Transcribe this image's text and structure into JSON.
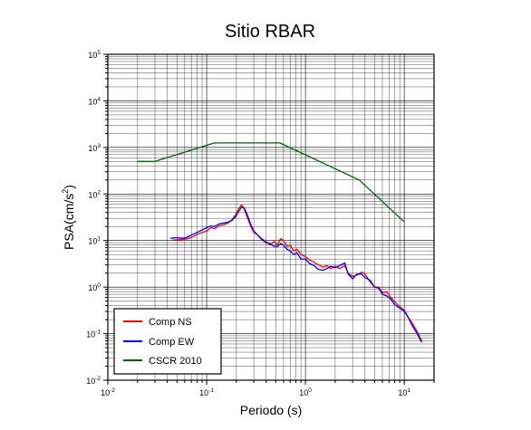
{
  "chart_data": {
    "type": "line",
    "title": "Sitio RBAR",
    "xlabel": "Periodo (s)",
    "ylabel_main": "PSA(cm/s",
    "ylabel_sup": "2",
    "ylabel_close": ")",
    "x_scale": "log",
    "y_scale": "log",
    "xlim": [
      0.01,
      20
    ],
    "ylim": [
      0.01,
      100000
    ],
    "grid": true,
    "legend_position": "bottom-left",
    "x_ticks": [
      {
        "base": "10",
        "exp": "-2",
        "value": 0.01
      },
      {
        "base": "10",
        "exp": "-1",
        "value": 0.1
      },
      {
        "base": "10",
        "exp": "0",
        "value": 1
      },
      {
        "base": "10",
        "exp": "1",
        "value": 10
      }
    ],
    "y_ticks": [
      {
        "base": "10",
        "exp": "-2",
        "value": 0.01
      },
      {
        "base": "10",
        "exp": "-1",
        "value": 0.1
      },
      {
        "base": "10",
        "exp": "0",
        "value": 1
      },
      {
        "base": "10",
        "exp": "1",
        "value": 10
      },
      {
        "base": "10",
        "exp": "2",
        "value": 100
      },
      {
        "base": "10",
        "exp": "3",
        "value": 1000
      },
      {
        "base": "10",
        "exp": "4",
        "value": 10000
      },
      {
        "base": "10",
        "exp": "5",
        "value": 100000
      }
    ],
    "series": [
      {
        "name": "Comp NS",
        "color": "#ff0000",
        "points": [
          [
            0.045,
            10.2
          ],
          [
            0.055,
            10.5
          ],
          [
            0.062,
            10.8
          ],
          [
            0.068,
            11.5
          ],
          [
            0.075,
            12.5
          ],
          [
            0.083,
            14
          ],
          [
            0.09,
            15
          ],
          [
            0.1,
            16
          ],
          [
            0.11,
            19
          ],
          [
            0.12,
            18
          ],
          [
            0.135,
            21
          ],
          [
            0.15,
            22
          ],
          [
            0.165,
            24
          ],
          [
            0.18,
            28
          ],
          [
            0.195,
            35
          ],
          [
            0.21,
            48
          ],
          [
            0.225,
            58
          ],
          [
            0.24,
            48
          ],
          [
            0.26,
            30
          ],
          [
            0.28,
            20
          ],
          [
            0.3,
            15
          ],
          [
            0.33,
            13
          ],
          [
            0.36,
            11
          ],
          [
            0.4,
            9.5
          ],
          [
            0.44,
            8
          ],
          [
            0.48,
            9.5
          ],
          [
            0.52,
            8
          ],
          [
            0.56,
            11
          ],
          [
            0.6,
            10
          ],
          [
            0.65,
            7.5
          ],
          [
            0.7,
            8
          ],
          [
            0.76,
            6
          ],
          [
            0.82,
            6.5
          ],
          [
            0.9,
            5
          ],
          [
            1.0,
            4.5
          ],
          [
            1.1,
            3.8
          ],
          [
            1.2,
            3.5
          ],
          [
            1.35,
            3.0
          ],
          [
            1.5,
            2.7
          ],
          [
            1.65,
            2.9
          ],
          [
            1.8,
            2.5
          ],
          [
            2.0,
            2.8
          ],
          [
            2.2,
            2.5
          ],
          [
            2.5,
            2.9
          ],
          [
            2.7,
            2.0
          ],
          [
            3.0,
            1.7
          ],
          [
            3.3,
            1.8
          ],
          [
            3.7,
            2.1
          ],
          [
            4.0,
            1.9
          ],
          [
            4.5,
            1.3
          ],
          [
            5.0,
            1.0
          ],
          [
            5.5,
            1.0
          ],
          [
            6.0,
            0.75
          ],
          [
            6.6,
            0.8
          ],
          [
            7.3,
            0.6
          ],
          [
            8.0,
            0.48
          ],
          [
            9.0,
            0.38
          ],
          [
            10.0,
            0.32
          ],
          [
            11.0,
            0.22
          ],
          [
            12.0,
            0.17
          ],
          [
            13.5,
            0.11
          ],
          [
            15.0,
            0.07
          ]
        ]
      },
      {
        "name": "Comp EW",
        "color": "#0000ff",
        "points": [
          [
            0.043,
            11.2
          ],
          [
            0.05,
            11.5
          ],
          [
            0.056,
            11.2
          ],
          [
            0.062,
            11.5
          ],
          [
            0.068,
            12.8
          ],
          [
            0.075,
            14
          ],
          [
            0.083,
            15.5
          ],
          [
            0.09,
            17
          ],
          [
            0.1,
            19
          ],
          [
            0.11,
            20.5
          ],
          [
            0.12,
            20
          ],
          [
            0.135,
            23
          ],
          [
            0.15,
            24
          ],
          [
            0.165,
            25
          ],
          [
            0.18,
            27
          ],
          [
            0.195,
            32
          ],
          [
            0.21,
            42
          ],
          [
            0.225,
            52
          ],
          [
            0.24,
            50
          ],
          [
            0.26,
            34
          ],
          [
            0.28,
            22
          ],
          [
            0.3,
            16
          ],
          [
            0.33,
            13
          ],
          [
            0.36,
            10.5
          ],
          [
            0.4,
            9
          ],
          [
            0.44,
            8.5
          ],
          [
            0.48,
            7.5
          ],
          [
            0.52,
            7.5
          ],
          [
            0.56,
            8.5
          ],
          [
            0.6,
            8
          ],
          [
            0.65,
            6.5
          ],
          [
            0.7,
            6
          ],
          [
            0.76,
            5
          ],
          [
            0.82,
            5.5
          ],
          [
            0.9,
            4
          ],
          [
            1.0,
            4.0
          ],
          [
            1.1,
            3.2
          ],
          [
            1.2,
            3.0
          ],
          [
            1.35,
            2.4
          ],
          [
            1.5,
            2.3
          ],
          [
            1.65,
            2.5
          ],
          [
            1.8,
            2.8
          ],
          [
            2.0,
            2.6
          ],
          [
            2.2,
            2.9
          ],
          [
            2.5,
            3.3
          ],
          [
            2.7,
            1.9
          ],
          [
            3.0,
            1.5
          ],
          [
            3.3,
            1.9
          ],
          [
            3.7,
            1.9
          ],
          [
            4.0,
            1.6
          ],
          [
            4.5,
            1.4
          ],
          [
            5.0,
            1.0
          ],
          [
            5.5,
            0.95
          ],
          [
            6.0,
            0.7
          ],
          [
            6.6,
            0.65
          ],
          [
            7.3,
            0.55
          ],
          [
            8.0,
            0.42
          ],
          [
            9.0,
            0.35
          ],
          [
            10.0,
            0.3
          ],
          [
            11.0,
            0.22
          ],
          [
            12.0,
            0.15
          ],
          [
            13.5,
            0.1
          ],
          [
            15.0,
            0.065
          ]
        ]
      },
      {
        "name": "CSCR 2010",
        "color": "#006400",
        "points": [
          [
            0.02,
            500
          ],
          [
            0.03,
            500
          ],
          [
            0.12,
            1250
          ],
          [
            0.55,
            1250
          ],
          [
            3.5,
            200
          ],
          [
            10.0,
            25
          ]
        ]
      }
    ]
  }
}
